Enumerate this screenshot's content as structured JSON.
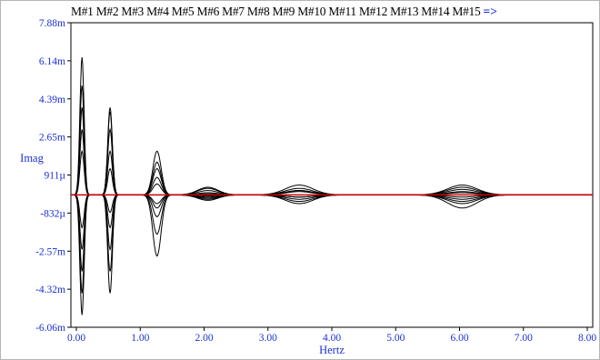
{
  "chart_data": {
    "type": "line",
    "title": "",
    "series_labels": [
      "M#1",
      "M#2",
      "M#3",
      "M#4",
      "M#5",
      "M#6",
      "M#7",
      "M#8",
      "M#9",
      "M#10",
      "M#11",
      "M#12",
      "M#13",
      "M#14",
      "M#15"
    ],
    "more_indicator": "=>",
    "xlabel": "Hertz",
    "ylabel": "Imag",
    "x_ticks": [
      "0.00",
      "1.00",
      "2.00",
      "3.00",
      "4.00",
      "5.00",
      "6.00",
      "7.00",
      "8.00"
    ],
    "y_ticks": [
      "7.88m",
      "6.14m",
      "4.39m",
      "2.65m",
      "911µ",
      "-832µ",
      "-2.57m",
      "-4.32m",
      "-6.06m"
    ],
    "xlim": [
      0,
      8
    ],
    "ylim": [
      -0.00606,
      0.00788
    ],
    "grid": false,
    "peaks_hz": [
      0.17,
      0.6,
      1.32,
      2.1,
      3.5,
      6.0
    ],
    "line_color": "#000000",
    "highlight_color": "#cc0000",
    "axis_text_color": "#1a2fd6"
  }
}
